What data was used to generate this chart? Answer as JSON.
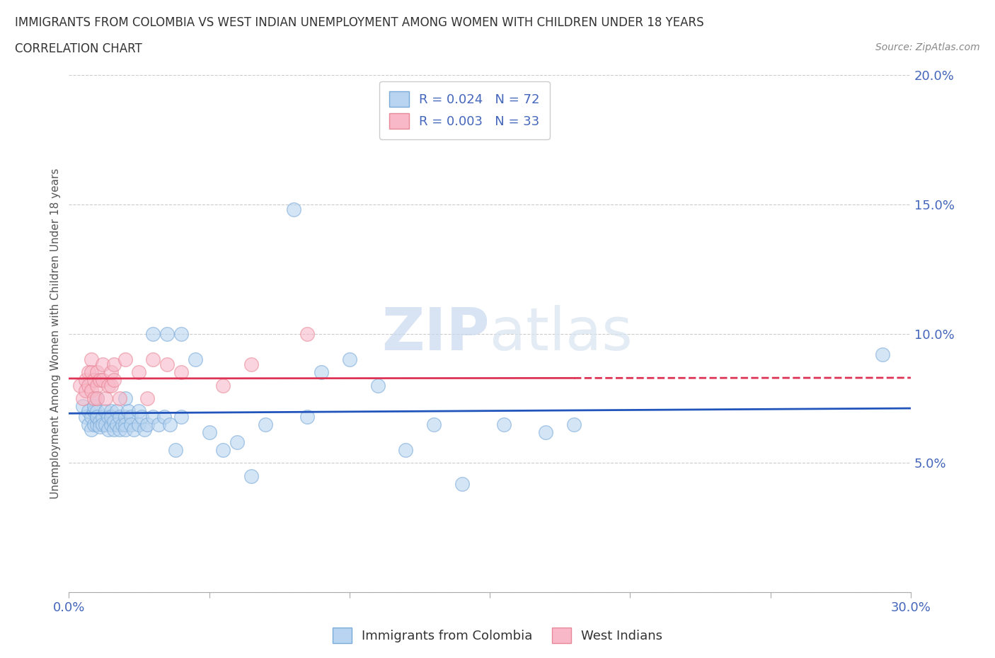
{
  "title": "IMMIGRANTS FROM COLOMBIA VS WEST INDIAN UNEMPLOYMENT AMONG WOMEN WITH CHILDREN UNDER 18 YEARS",
  "subtitle": "CORRELATION CHART",
  "source": "Source: ZipAtlas.com",
  "ylabel": "Unemployment Among Women with Children Under 18 years",
  "xlim": [
    0.0,
    0.3
  ],
  "ylim": [
    0.0,
    0.2
  ],
  "xticks": [
    0.0,
    0.05,
    0.1,
    0.15,
    0.2,
    0.25,
    0.3
  ],
  "yticks": [
    0.0,
    0.05,
    0.1,
    0.15,
    0.2
  ],
  "colombia_color": "#b8d4f0",
  "colombia_edge": "#7aaad8",
  "westindian_color": "#f8b8c8",
  "westindian_edge": "#e88898",
  "colombia_line_color": "#2255bb",
  "westindian_line_color": "#dd3355",
  "R_colombia": 0.024,
  "N_colombia": 72,
  "R_westindian": 0.003,
  "N_westindian": 33,
  "colombia_x": [
    0.005,
    0.006,
    0.007,
    0.007,
    0.008,
    0.008,
    0.009,
    0.009,
    0.009,
    0.01,
    0.01,
    0.01,
    0.01,
    0.01,
    0.011,
    0.011,
    0.012,
    0.012,
    0.013,
    0.013,
    0.014,
    0.014,
    0.015,
    0.015,
    0.015,
    0.016,
    0.016,
    0.017,
    0.017,
    0.018,
    0.018,
    0.019,
    0.02,
    0.02,
    0.02,
    0.02,
    0.021,
    0.022,
    0.022,
    0.023,
    0.025,
    0.025,
    0.026,
    0.027,
    0.028,
    0.03,
    0.03,
    0.032,
    0.034,
    0.035,
    0.036,
    0.038,
    0.04,
    0.04,
    0.045,
    0.05,
    0.055,
    0.06,
    0.065,
    0.07,
    0.085,
    0.09,
    0.1,
    0.11,
    0.12,
    0.13,
    0.14,
    0.155,
    0.17,
    0.18,
    0.29,
    0.08
  ],
  "colombia_y": [
    0.072,
    0.068,
    0.065,
    0.07,
    0.068,
    0.063,
    0.07,
    0.065,
    0.072,
    0.075,
    0.068,
    0.065,
    0.07,
    0.068,
    0.066,
    0.064,
    0.068,
    0.065,
    0.07,
    0.065,
    0.068,
    0.063,
    0.07,
    0.065,
    0.068,
    0.066,
    0.063,
    0.07,
    0.065,
    0.068,
    0.063,
    0.065,
    0.075,
    0.068,
    0.065,
    0.063,
    0.07,
    0.068,
    0.065,
    0.063,
    0.07,
    0.065,
    0.068,
    0.063,
    0.065,
    0.1,
    0.068,
    0.065,
    0.068,
    0.1,
    0.065,
    0.055,
    0.1,
    0.068,
    0.09,
    0.062,
    0.055,
    0.058,
    0.045,
    0.065,
    0.068,
    0.085,
    0.09,
    0.08,
    0.055,
    0.065,
    0.042,
    0.065,
    0.062,
    0.065,
    0.092,
    0.148
  ],
  "westindian_x": [
    0.004,
    0.005,
    0.006,
    0.006,
    0.007,
    0.007,
    0.008,
    0.008,
    0.008,
    0.009,
    0.009,
    0.01,
    0.01,
    0.01,
    0.011,
    0.012,
    0.012,
    0.013,
    0.014,
    0.015,
    0.015,
    0.016,
    0.016,
    0.018,
    0.02,
    0.025,
    0.028,
    0.03,
    0.035,
    0.04,
    0.055,
    0.065,
    0.085
  ],
  "westindian_y": [
    0.08,
    0.075,
    0.082,
    0.078,
    0.085,
    0.08,
    0.09,
    0.085,
    0.078,
    0.082,
    0.075,
    0.085,
    0.08,
    0.075,
    0.082,
    0.088,
    0.082,
    0.075,
    0.08,
    0.085,
    0.08,
    0.088,
    0.082,
    0.075,
    0.09,
    0.085,
    0.075,
    0.09,
    0.088,
    0.085,
    0.08,
    0.088,
    0.1
  ],
  "watermark_zip": "ZIP",
  "watermark_atlas": "atlas",
  "background_color": "#ffffff",
  "grid_color": "#cccccc"
}
